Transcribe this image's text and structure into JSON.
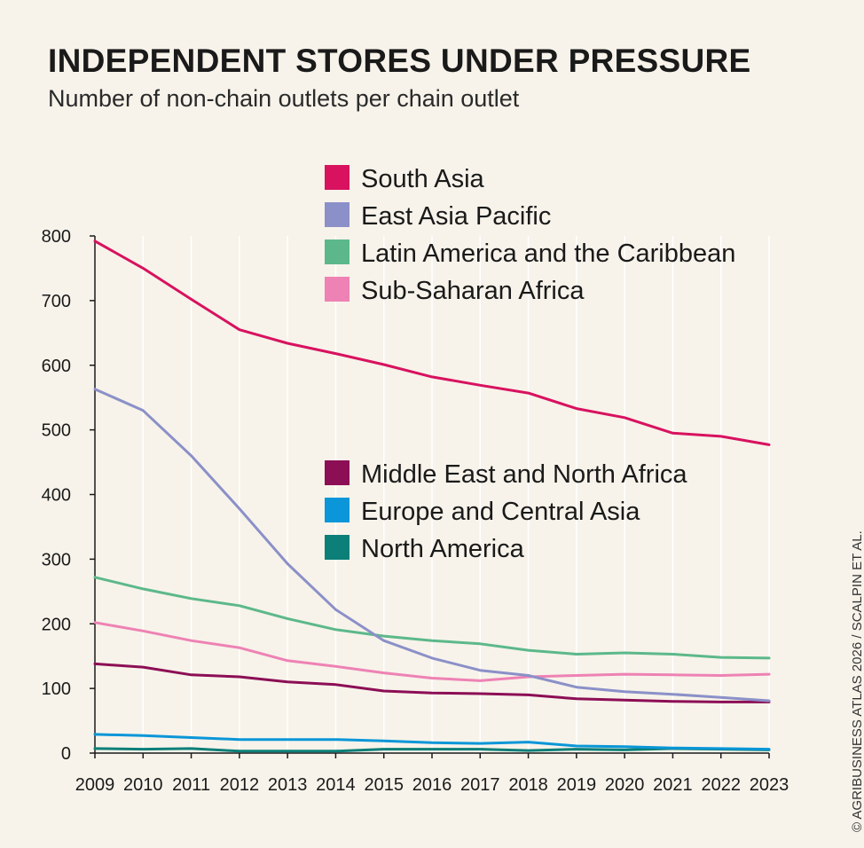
{
  "title": "INDEPENDENT STORES UNDER PRESSURE",
  "subtitle": "Number of non-chain outlets per chain outlet",
  "credit": "© AGRIBUSINESS ATLAS 2026 / SCALPIN ET AL.",
  "chart_data": {
    "type": "line",
    "x": [
      2009,
      2010,
      2011,
      2012,
      2013,
      2014,
      2015,
      2016,
      2017,
      2018,
      2019,
      2020,
      2021,
      2022,
      2023
    ],
    "ylim": [
      0,
      800
    ],
    "yticks": [
      0,
      100,
      200,
      300,
      400,
      500,
      600,
      700,
      800
    ],
    "grid": "vertical",
    "legend_groups": [
      {
        "placement": "top-center",
        "series": [
          "South Asia",
          "East Asia Pacific",
          "Latin America and the Caribbean",
          "Sub-Saharan Africa"
        ]
      },
      {
        "placement": "center",
        "series": [
          "Middle East and North Africa",
          "Europe and Central Asia",
          "North America"
        ]
      }
    ],
    "series": [
      {
        "name": "South Asia",
        "color": "#d8125f",
        "values": [
          792,
          750,
          702,
          655,
          634,
          618,
          601,
          582,
          569,
          557,
          533,
          519,
          495,
          490,
          477
        ]
      },
      {
        "name": "East Asia Pacific",
        "color": "#8b90c8",
        "values": [
          563,
          530,
          460,
          378,
          293,
          222,
          174,
          147,
          128,
          120,
          102,
          95,
          91,
          86,
          81
        ]
      },
      {
        "name": "Latin America and the Caribbean",
        "color": "#5cb88a",
        "values": [
          272,
          254,
          239,
          228,
          208,
          191,
          181,
          174,
          169,
          159,
          153,
          155,
          153,
          148,
          147
        ]
      },
      {
        "name": "Sub-Saharan Africa",
        "color": "#ee82b4",
        "values": [
          202,
          189,
          174,
          163,
          143,
          134,
          124,
          116,
          112,
          118,
          120,
          122,
          121,
          120,
          122
        ]
      },
      {
        "name": "Middle East and North Africa",
        "color": "#8c0e55",
        "values": [
          138,
          133,
          121,
          118,
          110,
          106,
          96,
          93,
          92,
          90,
          84,
          82,
          80,
          79,
          79
        ]
      },
      {
        "name": "Europe and Central Asia",
        "color": "#0a96d8",
        "values": [
          29,
          27,
          24,
          21,
          21,
          21,
          19,
          16,
          15,
          17,
          11,
          10,
          8,
          7,
          6
        ]
      },
      {
        "name": "North America",
        "color": "#0b7f78",
        "values": [
          7,
          6,
          7,
          3,
          3,
          3,
          6,
          6,
          6,
          4,
          6,
          5,
          7,
          6,
          5
        ]
      }
    ]
  }
}
